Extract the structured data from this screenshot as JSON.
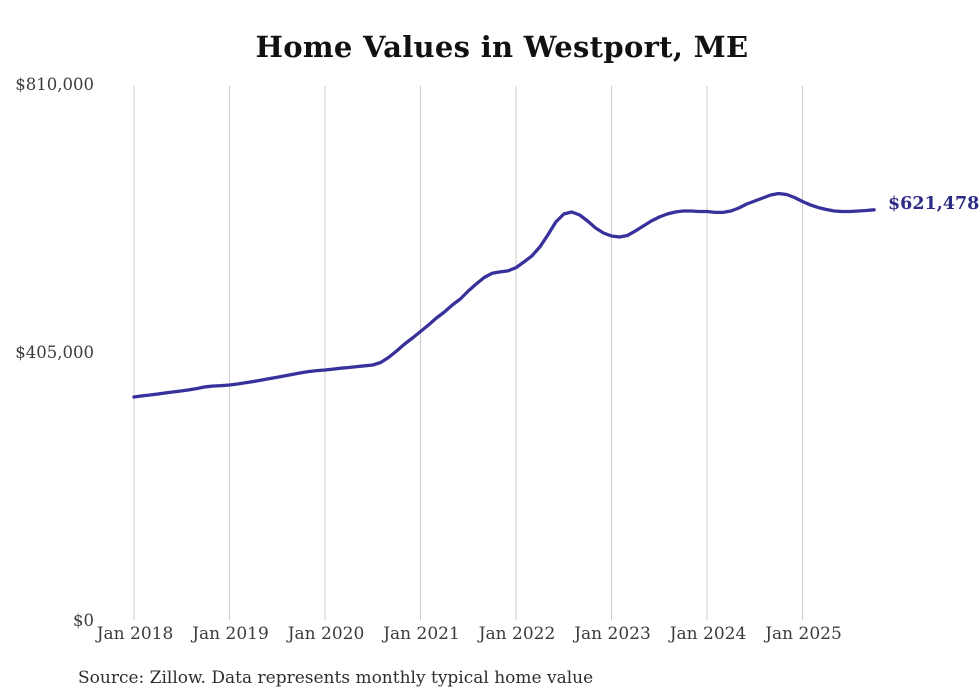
{
  "title": "Home Values in Westport, ME",
  "source_note": "Source: Zillow. Data represents monthly typical home value",
  "latest_value_label": "$621,478",
  "colors": {
    "line": "#38319b",
    "latest_label": "#2e2b85",
    "gridline": "#cccccc",
    "title_text": "#111111",
    "axis_text": "#3c3c3c"
  },
  "chart_data": {
    "type": "line",
    "title": "Home Values in Westport, ME",
    "series_name": "Monthly typical home value (Zillow)",
    "xlabel": "",
    "ylabel": "",
    "ylim": [
      0,
      810000
    ],
    "grid": "vertical-only",
    "legend": "none",
    "last_point_label": "$621,478",
    "y_ticks": [
      {
        "value": 0,
        "label": "$0"
      },
      {
        "value": 405000,
        "label": "$405,000"
      },
      {
        "value": 810000,
        "label": "$810,000"
      }
    ],
    "x_ticks": [
      {
        "index": 0,
        "label": "Jan 2018"
      },
      {
        "index": 12,
        "label": "Jan 2019"
      },
      {
        "index": 24,
        "label": "Jan 2020"
      },
      {
        "index": 36,
        "label": "Jan 2021"
      },
      {
        "index": 48,
        "label": "Jan 2022"
      },
      {
        "index": 60,
        "label": "Jan 2023"
      },
      {
        "index": 72,
        "label": "Jan 2024"
      },
      {
        "index": 84,
        "label": "Jan 2025"
      }
    ],
    "x": [
      "2018-01",
      "2018-02",
      "2018-03",
      "2018-04",
      "2018-05",
      "2018-06",
      "2018-07",
      "2018-08",
      "2018-09",
      "2018-10",
      "2018-11",
      "2018-12",
      "2019-01",
      "2019-02",
      "2019-03",
      "2019-04",
      "2019-05",
      "2019-06",
      "2019-07",
      "2019-08",
      "2019-09",
      "2019-10",
      "2019-11",
      "2019-12",
      "2020-01",
      "2020-02",
      "2020-03",
      "2020-04",
      "2020-05",
      "2020-06",
      "2020-07",
      "2020-08",
      "2020-09",
      "2020-10",
      "2020-11",
      "2020-12",
      "2021-01",
      "2021-02",
      "2021-03",
      "2021-04",
      "2021-05",
      "2021-06",
      "2021-07",
      "2021-08",
      "2021-09",
      "2021-10",
      "2021-11",
      "2021-12",
      "2022-01",
      "2022-02",
      "2022-03",
      "2022-04",
      "2022-05",
      "2022-06",
      "2022-07",
      "2022-08",
      "2022-09",
      "2022-10",
      "2022-11",
      "2022-12",
      "2023-01",
      "2023-02",
      "2023-03",
      "2023-04",
      "2023-05",
      "2023-06",
      "2023-07",
      "2023-08",
      "2023-09",
      "2023-10",
      "2023-11",
      "2023-12",
      "2024-01",
      "2024-02",
      "2024-03",
      "2024-04",
      "2024-05",
      "2024-06",
      "2024-07",
      "2024-08",
      "2024-09",
      "2024-10",
      "2024-11",
      "2024-12",
      "2025-01",
      "2025-02",
      "2025-03",
      "2025-04",
      "2025-05",
      "2025-06",
      "2025-07",
      "2025-08",
      "2025-09",
      "2025-10"
    ],
    "values": [
      338500,
      340100,
      341600,
      343100,
      344700,
      346200,
      347700,
      349500,
      351500,
      353900,
      355100,
      355800,
      356600,
      358100,
      359900,
      362000,
      364100,
      366300,
      368500,
      370700,
      372900,
      375100,
      377100,
      378400,
      379300,
      380600,
      382000,
      383100,
      384400,
      385600,
      386900,
      390700,
      398300,
      408000,
      418600,
      427700,
      437500,
      447300,
      457900,
      467000,
      477600,
      486600,
      498700,
      509300,
      519100,
      525500,
      527500,
      529000,
      534000,
      542600,
      551700,
      565300,
      583300,
      603000,
      615100,
      618100,
      613600,
      604500,
      593900,
      586400,
      581800,
      580300,
      582600,
      589400,
      596900,
      604500,
      610500,
      615100,
      618100,
      619600,
      619600,
      618900,
      618900,
      617400,
      617400,
      619600,
      624100,
      630200,
      634700,
      639200,
      643800,
      646000,
      644500,
      640000,
      633900,
      628600,
      624800,
      621800,
      619600,
      618800,
      618800,
      619600,
      620300,
      621478
    ]
  }
}
